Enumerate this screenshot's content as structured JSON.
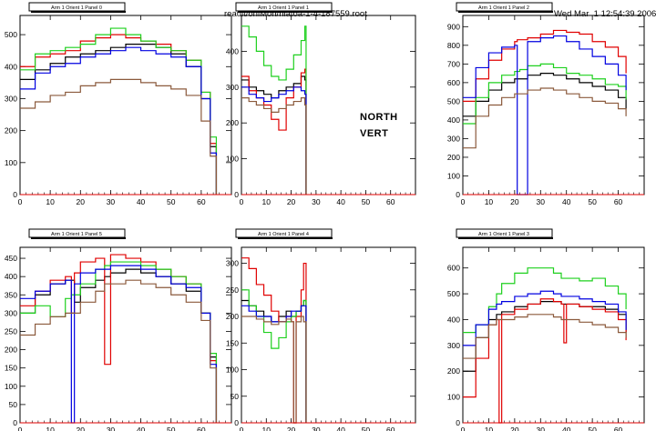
{
  "header": {
    "file_path": "reault/onlMon/hiatoa-1-4-187559.root",
    "timestamp": "Wed Mar  1 12:54:39 2006"
  },
  "annotations": {
    "north": "NORTH",
    "vert": "VERT"
  },
  "colors": {
    "black": "#000000",
    "red": "#e00000",
    "green": "#1ed01e",
    "blue": "#0000e0",
    "brown": "#8b5a3c"
  },
  "chart_data": [
    {
      "type": "line",
      "title": "Arm 1 Orient 1 Panel 0",
      "x_ticks": [
        0,
        10,
        20,
        30,
        40,
        50,
        60
      ],
      "xlim": [
        0,
        70
      ],
      "y_ticks": [
        0,
        100,
        200,
        300,
        400,
        500
      ],
      "ylim": [
        0,
        560
      ],
      "x": [
        0,
        5,
        10,
        15,
        20,
        25,
        30,
        35,
        40,
        45,
        50,
        55,
        60,
        63,
        65
      ],
      "series": [
        {
          "color": "black",
          "values": [
            360,
            390,
            410,
            430,
            440,
            450,
            460,
            470,
            470,
            460,
            440,
            400,
            300,
            150,
            0
          ]
        },
        {
          "color": "red",
          "values": [
            400,
            430,
            440,
            450,
            480,
            490,
            500,
            490,
            480,
            470,
            450,
            420,
            320,
            160,
            0
          ]
        },
        {
          "color": "green",
          "values": [
            390,
            440,
            450,
            460,
            470,
            500,
            520,
            500,
            480,
            460,
            450,
            420,
            320,
            180,
            0
          ]
        },
        {
          "color": "blue",
          "values": [
            330,
            380,
            400,
            410,
            430,
            440,
            450,
            460,
            450,
            440,
            430,
            400,
            300,
            130,
            0
          ]
        },
        {
          "color": "brown",
          "values": [
            270,
            290,
            310,
            320,
            340,
            350,
            360,
            360,
            350,
            340,
            330,
            310,
            230,
            120,
            0
          ]
        }
      ]
    },
    {
      "type": "line",
      "title": "Arm 1 Orient 1 Panel 1",
      "x_ticks": [
        0,
        10,
        20,
        30,
        40,
        50,
        60
      ],
      "xlim": [
        0,
        70
      ],
      "y_ticks": [
        0,
        100,
        200,
        300,
        400
      ],
      "ylim": [
        0,
        500
      ],
      "x": [
        0,
        3,
        6,
        9,
        12,
        15,
        18,
        21,
        24,
        25.5,
        26
      ],
      "series": [
        {
          "color": "black",
          "values": [
            320,
            300,
            290,
            280,
            270,
            290,
            300,
            310,
            330,
            320,
            0
          ]
        },
        {
          "color": "red",
          "values": [
            330,
            290,
            270,
            250,
            210,
            180,
            270,
            300,
            340,
            350,
            0
          ]
        },
        {
          "color": "green",
          "values": [
            470,
            440,
            400,
            360,
            330,
            320,
            350,
            390,
            430,
            470,
            0
          ]
        },
        {
          "color": "blue",
          "values": [
            300,
            280,
            270,
            260,
            270,
            280,
            290,
            300,
            290,
            280,
            0
          ]
        },
        {
          "color": "brown",
          "values": [
            270,
            260,
            250,
            240,
            230,
            240,
            250,
            260,
            270,
            250,
            0
          ]
        }
      ]
    },
    {
      "type": "line",
      "title": "Arm 1 Orient 1 Panel 2",
      "x_ticks": [
        0,
        10,
        20,
        30,
        40,
        50,
        60
      ],
      "xlim": [
        0,
        70
      ],
      "y_ticks": [
        0,
        100,
        200,
        300,
        400,
        500,
        600,
        700,
        800,
        900
      ],
      "ylim": [
        0,
        960
      ],
      "x": [
        0,
        5,
        10,
        15,
        20,
        21,
        22,
        25,
        30,
        35,
        40,
        45,
        50,
        55,
        60,
        63
      ],
      "series": [
        {
          "color": "black",
          "values": [
            420,
            500,
            560,
            600,
            620,
            620,
            620,
            640,
            650,
            640,
            620,
            600,
            580,
            560,
            520,
            460
          ]
        },
        {
          "color": "red",
          "values": [
            500,
            620,
            720,
            780,
            820,
            830,
            830,
            840,
            860,
            880,
            870,
            860,
            820,
            790,
            740,
            650
          ]
        },
        {
          "color": "green",
          "values": [
            380,
            520,
            600,
            640,
            660,
            660,
            670,
            690,
            700,
            680,
            650,
            640,
            620,
            590,
            580,
            510
          ]
        },
        {
          "color": "blue",
          "values": [
            520,
            680,
            760,
            790,
            800,
            0,
            0,
            820,
            840,
            850,
            820,
            780,
            740,
            700,
            640,
            560
          ]
        },
        {
          "color": "brown",
          "values": [
            250,
            420,
            480,
            520,
            540,
            540,
            540,
            560,
            570,
            560,
            540,
            520,
            500,
            490,
            460,
            420
          ]
        }
      ]
    },
    {
      "type": "line",
      "title": "Arm 1 Orient 1 Panel 5",
      "x_ticks": [
        0,
        10,
        20,
        30,
        40,
        50,
        60
      ],
      "xlim": [
        0,
        70
      ],
      "y_ticks": [
        0,
        50,
        100,
        150,
        200,
        250,
        300,
        350,
        400,
        450
      ],
      "ylim": [
        0,
        480
      ],
      "x": [
        0,
        5,
        10,
        15,
        17,
        18,
        20,
        25,
        28,
        30,
        35,
        40,
        45,
        50,
        55,
        60,
        63,
        65
      ],
      "series": [
        {
          "color": "black",
          "values": [
            300,
            350,
            380,
            390,
            390,
            330,
            370,
            390,
            400,
            410,
            420,
            410,
            400,
            380,
            360,
            300,
            180,
            0
          ]
        },
        {
          "color": "red",
          "values": [
            320,
            360,
            390,
            400,
            300,
            410,
            440,
            450,
            160,
            460,
            450,
            440,
            420,
            400,
            380,
            300,
            170,
            0
          ]
        },
        {
          "color": "green",
          "values": [
            300,
            320,
            290,
            340,
            350,
            350,
            380,
            420,
            430,
            440,
            440,
            430,
            420,
            400,
            380,
            300,
            190,
            0
          ]
        },
        {
          "color": "blue",
          "values": [
            340,
            360,
            380,
            390,
            0,
            380,
            410,
            420,
            420,
            430,
            430,
            420,
            400,
            380,
            370,
            300,
            160,
            0
          ]
        },
        {
          "color": "brown",
          "values": [
            240,
            270,
            290,
            300,
            300,
            300,
            330,
            360,
            380,
            380,
            390,
            380,
            370,
            350,
            330,
            280,
            150,
            0
          ]
        }
      ]
    },
    {
      "type": "line",
      "title": "Arm 1 Orient 1 Panel 4",
      "x_ticks": [
        0,
        10,
        20,
        30,
        40,
        50,
        60
      ],
      "xlim": [
        0,
        70
      ],
      "y_ticks": [
        0,
        50,
        100,
        150,
        200,
        250,
        300
      ],
      "ylim": [
        0,
        330
      ],
      "x": [
        0,
        3,
        6,
        9,
        12,
        15,
        18,
        20,
        21,
        22,
        24,
        25,
        26
      ],
      "series": [
        {
          "color": "black",
          "values": [
            230,
            220,
            210,
            200,
            190,
            200,
            210,
            200,
            200,
            210,
            220,
            230,
            0
          ]
        },
        {
          "color": "red",
          "values": [
            310,
            290,
            260,
            240,
            210,
            190,
            200,
            190,
            0,
            200,
            250,
            300,
            0
          ]
        },
        {
          "color": "green",
          "values": [
            250,
            220,
            200,
            170,
            140,
            160,
            190,
            200,
            200,
            210,
            220,
            230,
            0
          ]
        },
        {
          "color": "blue",
          "values": [
            220,
            210,
            200,
            200,
            190,
            190,
            200,
            210,
            210,
            210,
            220,
            220,
            0
          ]
        },
        {
          "color": "brown",
          "values": [
            200,
            200,
            195,
            190,
            185,
            190,
            195,
            190,
            0,
            190,
            200,
            190,
            0
          ]
        }
      ]
    },
    {
      "type": "line",
      "title": "Arm 1 Orient 1 Panel 3",
      "x_ticks": [
        0,
        10,
        20,
        30,
        40,
        50,
        60
      ],
      "xlim": [
        0,
        70
      ],
      "y_ticks": [
        0,
        100,
        200,
        300,
        400,
        500,
        600
      ],
      "ylim": [
        0,
        680
      ],
      "x": [
        0,
        5,
        10,
        13,
        14,
        15,
        20,
        25,
        30,
        35,
        38,
        39,
        40,
        45,
        50,
        55,
        60,
        63
      ],
      "series": [
        {
          "color": "black",
          "values": [
            200,
            330,
            400,
            420,
            420,
            430,
            450,
            460,
            470,
            470,
            460,
            460,
            460,
            450,
            450,
            440,
            420,
            350
          ]
        },
        {
          "color": "red",
          "values": [
            100,
            250,
            380,
            400,
            0,
            420,
            440,
            460,
            480,
            470,
            460,
            310,
            460,
            450,
            440,
            430,
            400,
            320
          ]
        },
        {
          "color": "green",
          "values": [
            350,
            380,
            450,
            500,
            500,
            540,
            580,
            600,
            600,
            580,
            560,
            560,
            560,
            550,
            560,
            530,
            500,
            440
          ]
        },
        {
          "color": "blue",
          "values": [
            300,
            380,
            440,
            460,
            460,
            470,
            490,
            500,
            510,
            500,
            490,
            490,
            490,
            480,
            470,
            460,
            430,
            360
          ]
        },
        {
          "color": "brown",
          "values": [
            250,
            330,
            380,
            400,
            400,
            400,
            410,
            420,
            420,
            410,
            400,
            400,
            400,
            390,
            380,
            370,
            350,
            330
          ]
        }
      ]
    }
  ]
}
